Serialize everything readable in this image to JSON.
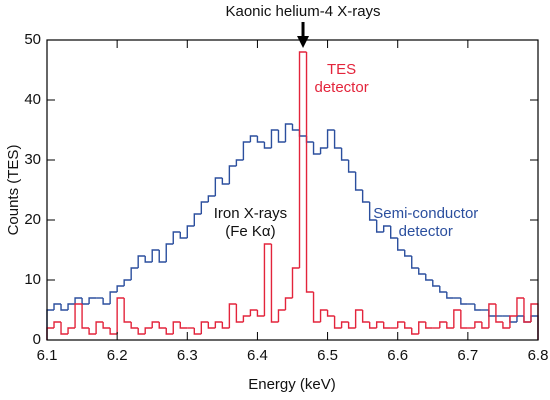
{
  "chart_data": {
    "type": "histogram",
    "x_label": "Energy (keV)",
    "y_label": "Counts (TES)",
    "xlim": [
      6.1,
      6.8
    ],
    "ylim": [
      0,
      50
    ],
    "xticks": [
      {
        "value": 6.1,
        "label": "6.1"
      },
      {
        "value": 6.2,
        "label": "6.2"
      },
      {
        "value": 6.3,
        "label": "6.3"
      },
      {
        "value": 6.4,
        "label": "6.4"
      },
      {
        "value": 6.5,
        "label": "6.5"
      },
      {
        "value": 6.6,
        "label": "6.6"
      },
      {
        "value": 6.7,
        "label": "6.7"
      },
      {
        "value": 6.8,
        "label": "6.8"
      }
    ],
    "yticks": [
      0,
      10,
      20,
      30,
      40,
      50
    ],
    "bins": [
      6.1,
      6.11,
      6.12,
      6.13,
      6.14,
      6.15,
      6.16,
      6.17,
      6.18,
      6.19,
      6.2,
      6.21,
      6.22,
      6.23,
      6.24,
      6.25,
      6.26,
      6.27,
      6.28,
      6.29,
      6.3,
      6.31,
      6.32,
      6.33,
      6.34,
      6.35,
      6.36,
      6.37,
      6.38,
      6.39,
      6.4,
      6.41,
      6.42,
      6.43,
      6.44,
      6.45,
      6.46,
      6.47,
      6.48,
      6.49,
      6.5,
      6.51,
      6.52,
      6.53,
      6.54,
      6.55,
      6.56,
      6.57,
      6.58,
      6.59,
      6.6,
      6.61,
      6.62,
      6.63,
      6.64,
      6.65,
      6.66,
      6.67,
      6.68,
      6.69,
      6.7,
      6.71,
      6.72,
      6.73,
      6.74,
      6.75,
      6.76,
      6.77,
      6.78,
      6.79,
      6.8
    ],
    "series": [
      {
        "name": "Semi-conductor detector",
        "color": "#2b4f9e",
        "values": [
          5,
          6,
          5,
          6,
          7,
          6,
          7,
          7,
          6,
          8,
          9,
          10,
          12,
          14,
          13,
          15,
          13,
          16,
          18,
          17,
          19,
          21,
          23,
          24,
          27,
          26,
          29,
          30,
          33,
          34,
          33,
          32,
          35,
          33,
          36,
          35,
          34,
          33,
          31,
          32,
          35,
          32,
          30,
          28,
          25,
          23,
          20,
          18,
          19,
          17,
          15,
          14,
          12,
          11,
          10,
          9,
          8,
          7,
          7,
          6,
          6,
          5,
          5,
          4,
          4,
          4,
          3,
          4,
          3,
          4
        ]
      },
      {
        "name": "TES detector",
        "color": "#e3243b",
        "values": [
          2,
          3,
          1,
          2,
          6,
          2,
          1,
          3,
          2,
          1,
          7,
          3,
          2,
          1,
          2,
          3,
          2,
          1,
          3,
          2,
          2,
          1,
          3,
          2,
          3,
          2,
          6,
          3,
          4,
          5,
          4,
          16,
          3,
          5,
          7,
          12,
          48,
          8,
          3,
          5,
          4,
          2,
          3,
          2,
          5,
          3,
          2,
          3,
          2,
          2,
          3,
          2,
          1,
          3,
          2,
          2,
          3,
          2,
          5,
          2,
          2,
          3,
          2,
          6,
          3,
          2,
          4,
          7,
          3,
          6
        ]
      }
    ],
    "annotations": [
      {
        "lines": [
          "Kaonic helium-4 X-rays"
        ],
        "x": 6.465
      },
      {
        "lines": [
          "TES",
          "detector"
        ],
        "x": 6.52,
        "y": 45
      },
      {
        "lines": [
          "Semi-conductor",
          "detector"
        ],
        "x": 6.64,
        "y": 21
      },
      {
        "lines": [
          "Iron X-rays",
          "(Fe Kα)"
        ],
        "x": 6.39,
        "y": 21
      }
    ]
  }
}
